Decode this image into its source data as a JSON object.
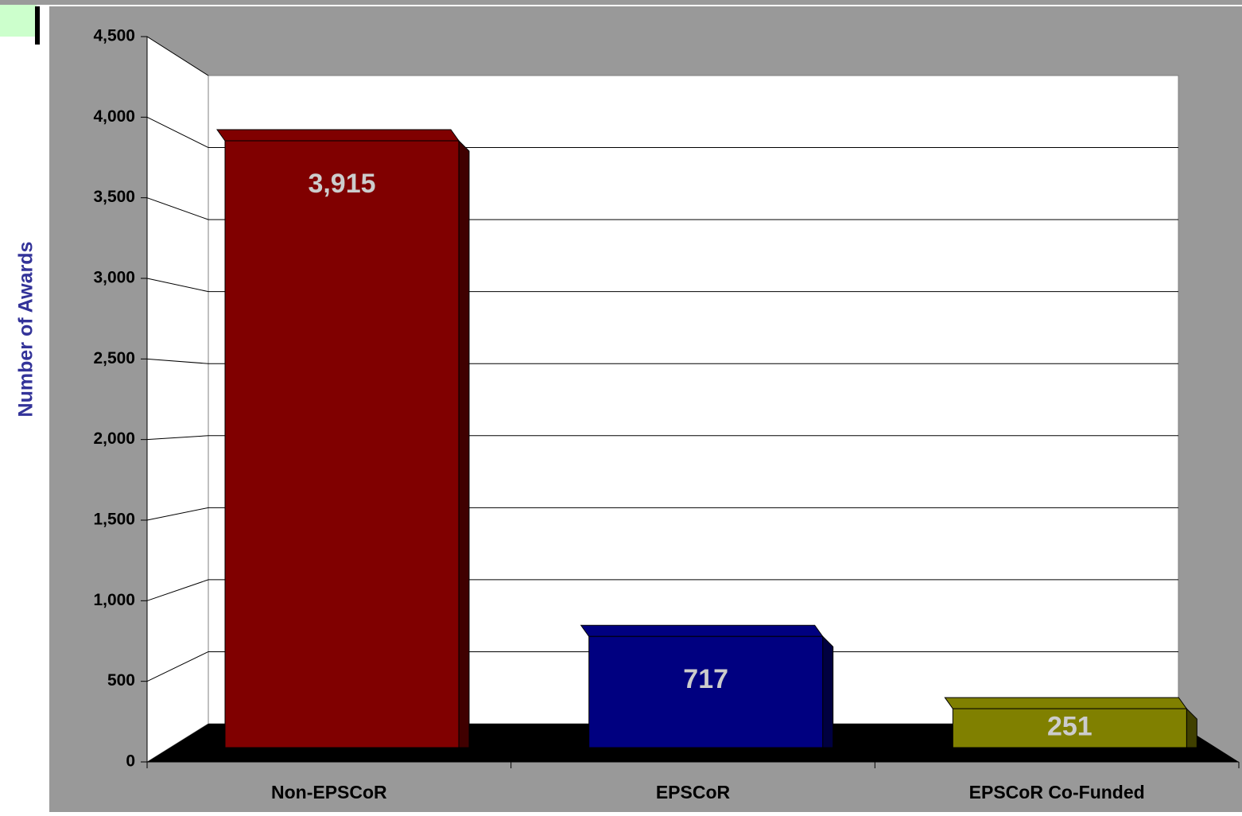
{
  "chart_data": {
    "type": "bar3d",
    "y_label": "Number of Awards",
    "categories": [
      "Non-EPSCoR",
      "EPSCoR",
      "EPSCoR Co-Funded"
    ],
    "values": [
      3915,
      717,
      251
    ],
    "value_labels": [
      "3,915",
      "717",
      "251"
    ],
    "colors": [
      "#800000",
      "#000080",
      "#808000"
    ],
    "ylim": [
      0,
      4500
    ],
    "yticks": [
      0,
      500,
      {
        "value": 1000,
        "label": "1,000"
      },
      {
        "value": 1500,
        "label": "1,500"
      },
      {
        "value": 2000,
        "label": "2,000"
      },
      {
        "value": 2500,
        "label": "2,500"
      },
      {
        "value": 3000,
        "label": "3,000"
      },
      {
        "value": 3500,
        "label": "3,500"
      },
      {
        "value": 4000,
        "label": "4,000"
      },
      {
        "value": 4500,
        "label": "4,500"
      }
    ],
    "grid": true
  }
}
